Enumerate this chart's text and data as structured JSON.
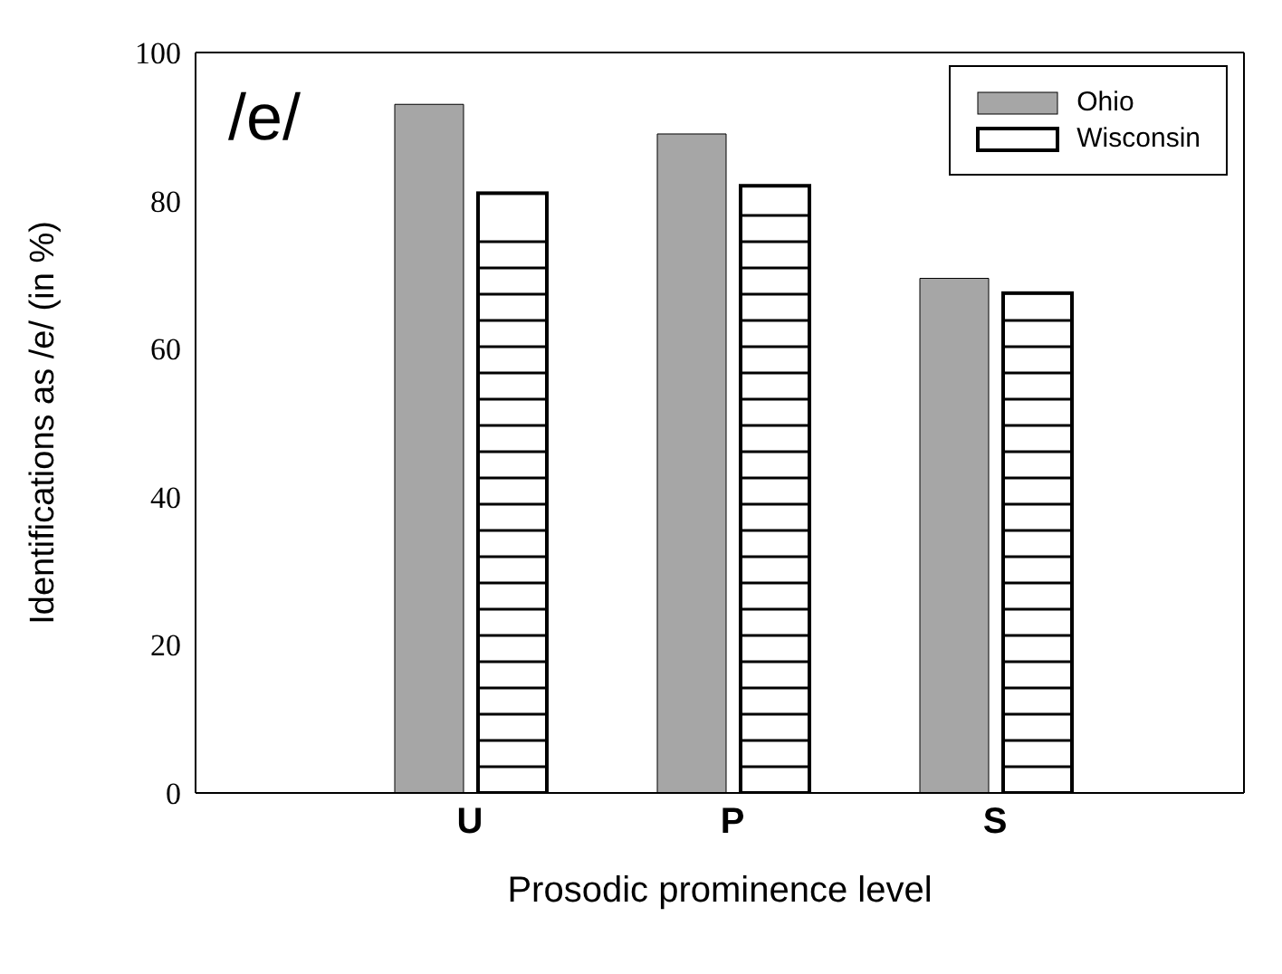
{
  "chart_data": {
    "type": "bar",
    "xlabel": "Prosodic prominence level",
    "ylabel": "Identifications as /e/ (in %)",
    "annotations": [
      "/e/"
    ],
    "categories": [
      "U",
      "P",
      "S"
    ],
    "series": [
      {
        "name": "Ohio",
        "color": "#a6a6a6",
        "values": [
          93,
          89,
          69.5
        ]
      },
      {
        "name": "Wisconsin",
        "color": "#ffffff",
        "values": [
          81,
          82,
          67.5
        ]
      }
    ],
    "ylim": [
      0,
      100
    ],
    "yticks": [
      0,
      20,
      40,
      60,
      80,
      100
    ],
    "grid": false,
    "legend": "top right"
  }
}
